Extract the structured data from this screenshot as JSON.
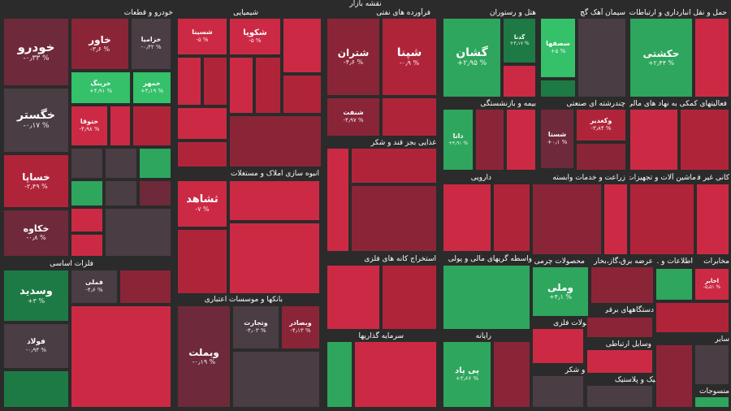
{
  "page_title": "نقشه بازار",
  "colors": {
    "background": "#2b2b2b",
    "strong_red": "#cc2a44",
    "red": "#b0243a",
    "dark_red": "#8a2538",
    "maroon": "#6e2a3a",
    "neutral": "#4a3d44",
    "green": "#2ea65d",
    "dark_green": "#1e7a45",
    "light_green": "#35c06a"
  },
  "sectors": [
    {
      "id": "auto",
      "label": "خودرو و قطعات"
    },
    {
      "id": "chem",
      "label": "شیمیایی"
    },
    {
      "id": "oil",
      "label": "فرآورده های نفتی"
    },
    {
      "id": "hotel",
      "label": "هتل و رستوران"
    },
    {
      "id": "cement",
      "label": "سیمان آهک گچ"
    },
    {
      "id": "telecom",
      "label": "حمل و نقل انبارداری و ارتباطات"
    },
    {
      "id": "metals",
      "label": "فلزات اساسی"
    },
    {
      "id": "realestate",
      "label": "انبوه سازی املاک و مستغلات"
    },
    {
      "id": "banks",
      "label": "بانکها و موسسات اعتباری"
    },
    {
      "id": "food",
      "label": "غذایی بجز قند و شکر"
    },
    {
      "id": "insurance",
      "label": "بیمه و بازنشستگی"
    },
    {
      "id": "multi",
      "label": "چندرشته ای صنعتی"
    },
    {
      "id": "financial_aux",
      "label": "فعالیتهای کمکی به نهاد های مالی"
    },
    {
      "id": "pharma",
      "label": "دارویی"
    },
    {
      "id": "it",
      "label": "زراعت و خدمات وابسته"
    },
    {
      "id": "equipment",
      "label": "ماشین آلات و تجهیزات"
    },
    {
      "id": "nonmetal",
      "label": "کانی غیر فلزی"
    },
    {
      "id": "mining",
      "label": "استخراج کانه های فلزی"
    },
    {
      "id": "financial",
      "label": "واسطه گریهای مالی و پولی"
    },
    {
      "id": "leather",
      "label": "محصولات چرمی"
    },
    {
      "id": "utilities",
      "label": "عرضه برق،گاز،بخار"
    },
    {
      "id": "info",
      "label": "اطلاعات و ..."
    },
    {
      "id": "comms",
      "label": "مخابرات"
    },
    {
      "id": "investment",
      "label": "سرمایه گذاریها"
    },
    {
      "id": "computer",
      "label": "رایانه"
    },
    {
      "id": "metal_products",
      "label": "محصولات فلزی"
    },
    {
      "id": "electric",
      "label": "دستگاههای برقی"
    },
    {
      "id": "sugar",
      "label": "قند و شکر"
    },
    {
      "id": "retail",
      "label": "وسایل ارتباطی"
    },
    {
      "id": "rubber",
      "label": "لاستیک و پلاستیک"
    },
    {
      "id": "textiles",
      "label": "منسوجات"
    },
    {
      "id": "other",
      "label": "سایر"
    }
  ],
  "stocks": [
    {
      "id": "khodro",
      "name": "خودرو",
      "change": "-۰٫۳۳ %"
    },
    {
      "id": "khaver",
      "name": "خاور",
      "change": "-۳٫۶ %"
    },
    {
      "id": "khazamia",
      "name": "خزامیا",
      "change": "-۰٫۴۲ %"
    },
    {
      "id": "khgostar",
      "name": "خگستر",
      "change": "-۰٫۱۷ %"
    },
    {
      "id": "khringk",
      "name": "خرینگ",
      "change": "+۴٫۹۱ %"
    },
    {
      "id": "khmehr",
      "name": "خمهر",
      "change": "+۴٫۱۹ %"
    },
    {
      "id": "khtoga",
      "name": "ختوقا",
      "change": "-۴٫۹۸ %"
    },
    {
      "id": "khsapa",
      "name": "خساپا",
      "change": "-۲٫۴۹ %"
    },
    {
      "id": "khkave",
      "name": "خکاوه",
      "change": "-۰٫۸ %"
    },
    {
      "id": "shasta",
      "name": "شستا",
      "change": "+۰٫۱ %"
    },
    {
      "id": "shasina",
      "name": "شسینا",
      "change": "-۵ %"
    },
    {
      "id": "shekpoya",
      "name": "شکویا",
      "change": "-۵ %"
    },
    {
      "id": "shapna",
      "name": "شپنا",
      "change": "-۰٫۹ %"
    },
    {
      "id": "shatran",
      "name": "شتران",
      "change": "-۴٫۶ %"
    },
    {
      "id": "shenabi",
      "name": "شنفت",
      "change": "-۴٫۹۷ %"
    },
    {
      "id": "gashan",
      "name": "گشان",
      "change": "+۲٫۹۵ %"
    },
    {
      "id": "gandza",
      "name": "گدنا",
      "change": "+۳٫۱۷ %"
    },
    {
      "id": "sesfaha",
      "name": "سصفها",
      "change": "+۵ %"
    },
    {
      "id": "hakashti",
      "name": "حکشتی",
      "change": "+۲٫۴۴ %"
    },
    {
      "id": "vasadid",
      "name": "وسدید",
      "change": "+۳ %"
    },
    {
      "id": "fameli",
      "name": "فملی",
      "change": "-۴٫۶ %"
    },
    {
      "id": "fulad",
      "name": "فولاد",
      "change": "-۰٫۹۴ %"
    },
    {
      "id": "tashad",
      "name": "ثشاهد",
      "change": "-۷ %"
    },
    {
      "id": "vabmelat",
      "name": "وبملت",
      "change": "-۰٫۱۹ %"
    },
    {
      "id": "vatejarat",
      "name": "وتجارت",
      "change": "-۴٫۰۳ %"
    },
    {
      "id": "vabsader",
      "name": "وبصادر",
      "change": "-۴٫۱۳ %"
    },
    {
      "id": "dadna",
      "name": "دانا",
      "change": "+۴٫۹۱ %"
    },
    {
      "id": "vemelli",
      "name": "وملی",
      "change": "+۴٫۱ %"
    },
    {
      "id": "piyad",
      "name": "پی پاد",
      "change": "+۳٫۶۶ %"
    },
    {
      "id": "vakaghzar",
      "name": "وکغدیر",
      "change": "-۳٫۸۴ %"
    },
    {
      "id": "akhaber",
      "name": "اخابر",
      "change": "-۵٫۵۱ %"
    }
  ]
}
